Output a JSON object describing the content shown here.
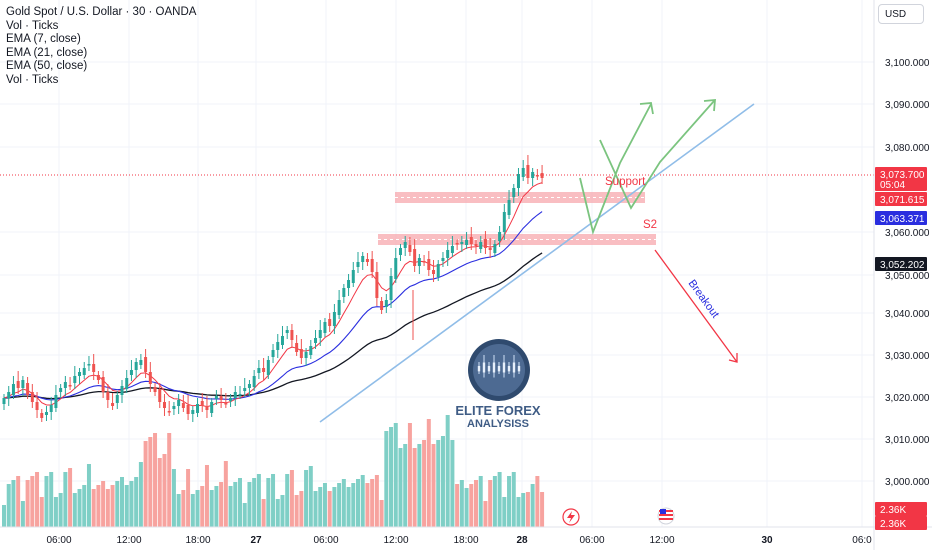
{
  "legend": {
    "title": "Gold Spot / U.S. Dollar · 30 · OANDA",
    "lines": [
      "Vol · Ticks",
      "EMA (7, close)",
      "EMA (21, close)",
      "EMA (50, close)",
      "Vol · Ticks"
    ]
  },
  "currency_button": "USD",
  "price_axis": {
    "ticks": [
      "3,100.000",
      "3,090.000",
      "3,080.000",
      "3,060.000",
      "3,050.000",
      "3,040.000",
      "3,030.000",
      "3,020.000",
      "3,010.000",
      "3,000.000"
    ]
  },
  "price_labels": [
    {
      "text": "3,073.700",
      "sub": "05:04",
      "color": "#f23645"
    },
    {
      "text": "3,071.615",
      "color": "#f23645"
    },
    {
      "text": "3,063.371",
      "color": "#2a2edf"
    },
    {
      "text": "3,052.202",
      "color": "#131722"
    },
    {
      "text": "2.36K",
      "color": "#f23645"
    },
    {
      "text": "2.36K",
      "color": "#f23645"
    }
  ],
  "time_axis": {
    "ticks": [
      "06:00",
      "12:00",
      "18:00",
      "27",
      "06:00",
      "12:00",
      "18:00",
      "28",
      "06:00",
      "12:00",
      "30",
      "06:0"
    ]
  },
  "annotations": {
    "support": "Support",
    "s2": "S2",
    "breakout": "Breakout"
  },
  "watermark": {
    "line1": "ELITE FOREX",
    "line2": "ANALYSISS"
  },
  "colors": {
    "up": "#26a69a",
    "down": "#ef5350",
    "ema7": "#f23645",
    "ema21": "#2a2edf",
    "ema50": "#131722",
    "zone": "#f7a8ae",
    "trendline": "#90bde8",
    "projection": "#7bc47f",
    "breakout": "#f23645"
  }
}
